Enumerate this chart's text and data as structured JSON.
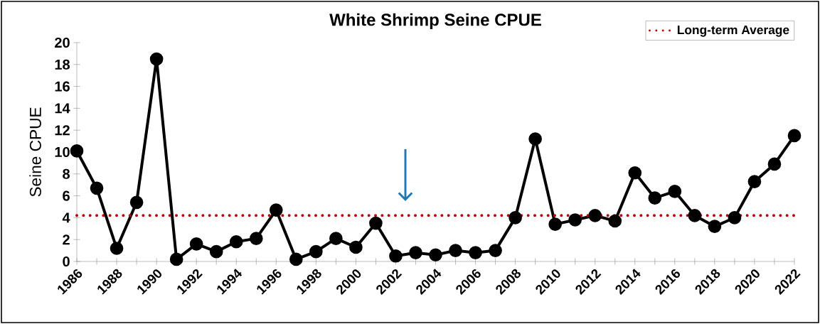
{
  "chart_data": {
    "type": "line",
    "title": "White Shrimp Seine CPUE",
    "ylabel": "Seine CPUE",
    "x": [
      1986,
      1987,
      1988,
      1989,
      1990,
      1991,
      1992,
      1993,
      1994,
      1995,
      1996,
      1997,
      1998,
      1999,
      2000,
      2001,
      2002,
      2003,
      2004,
      2005,
      2006,
      2007,
      2008,
      2009,
      2010,
      2011,
      2012,
      2013,
      2014,
      2015,
      2016,
      2017,
      2018,
      2019,
      2020,
      2021,
      2022
    ],
    "series": [
      {
        "color": "#000000",
        "values": [
          10.1,
          6.7,
          1.2,
          5.4,
          18.5,
          0.2,
          1.6,
          0.9,
          1.8,
          2.1,
          4.7,
          0.2,
          0.9,
          2.1,
          1.3,
          3.5,
          0.5,
          0.8,
          0.6,
          1.0,
          0.8,
          1.0,
          4.0,
          11.2,
          3.4,
          3.8,
          4.2,
          3.7,
          8.1,
          5.8,
          6.4,
          4.2,
          3.2,
          4.0,
          7.3,
          8.9,
          11.5
        ]
      }
    ],
    "ref_lines": [
      {
        "axis": "y",
        "value": 4.2,
        "label": "Long-term Average",
        "color": "#c00000",
        "line_style": "dotted"
      }
    ],
    "xlim": [
      1986,
      2022
    ],
    "xticks": [
      1986,
      {
        "value": 1987,
        "label": null
      },
      1988,
      {
        "value": 1989,
        "label": null
      },
      1990,
      {
        "value": 1991,
        "label": null
      },
      1992,
      {
        "value": 1993,
        "label": null
      },
      1994,
      {
        "value": 1995,
        "label": null
      },
      1996,
      {
        "value": 1997,
        "label": null
      },
      1998,
      {
        "value": 1999,
        "label": null
      },
      2000,
      {
        "value": 2001,
        "label": null
      },
      2002,
      {
        "value": 2003,
        "label": null
      },
      2004,
      {
        "value": 2005,
        "label": null
      },
      2006,
      {
        "value": 2007,
        "label": null
      },
      2008,
      {
        "value": 2009,
        "label": null
      },
      2010,
      {
        "value": 2011,
        "label": null
      },
      2012,
      {
        "value": 2013,
        "label": null
      },
      2014,
      {
        "value": 2015,
        "label": null
      },
      2016,
      {
        "value": 2017,
        "label": null
      },
      2018,
      {
        "value": 2019,
        "label": null
      },
      2020,
      {
        "value": 2021,
        "label": null
      },
      2022
    ],
    "ylim": [
      0,
      20
    ],
    "yticks": [
      0,
      2,
      4,
      6,
      8,
      10,
      12,
      14,
      16,
      18,
      20
    ],
    "grid": false,
    "legend": "top right",
    "marker": "circle",
    "line_style": "solid"
  }
}
